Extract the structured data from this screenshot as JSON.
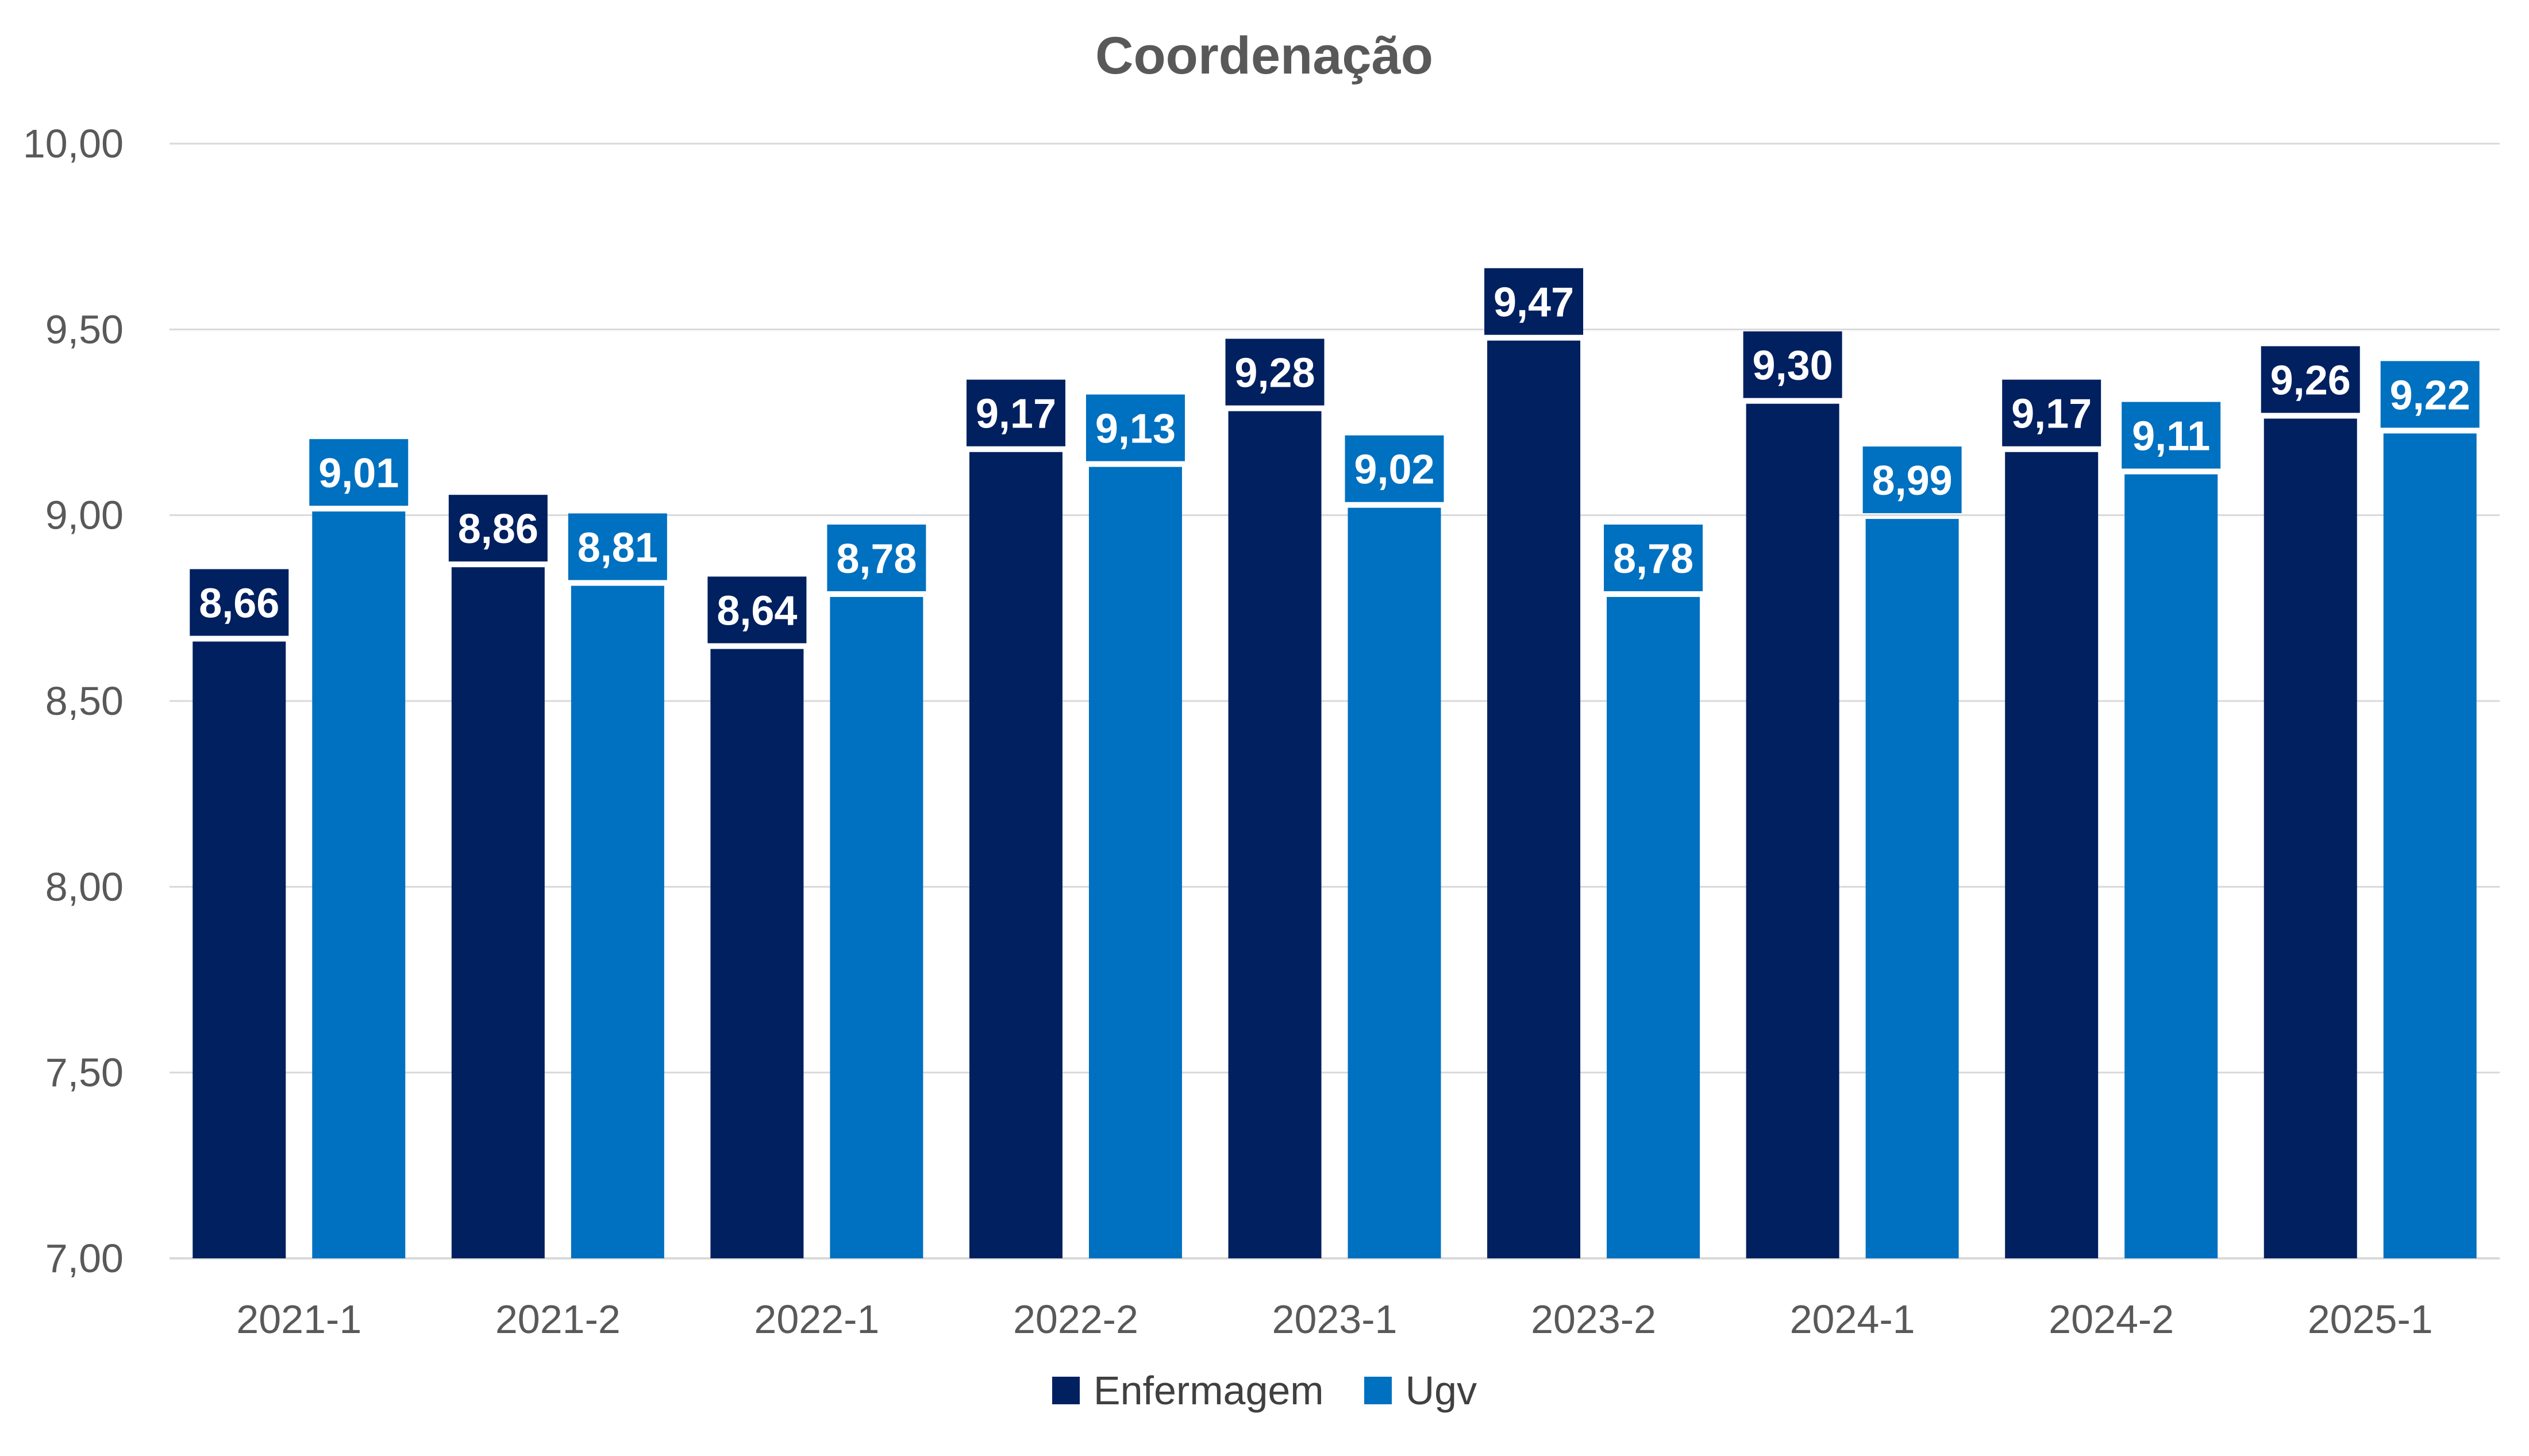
{
  "chart_data": {
    "type": "bar",
    "title": "Coordenação",
    "xlabel": "",
    "ylabel": "",
    "ylim": [
      7.0,
      10.0
    ],
    "yticks": [
      "7,00",
      "7,50",
      "8,00",
      "8,50",
      "9,00",
      "9,50",
      "10,00"
    ],
    "yticks_values": [
      7.0,
      7.5,
      8.0,
      8.5,
      9.0,
      9.5,
      10.0
    ],
    "grid": true,
    "legend_position": "bottom",
    "categories": [
      "2021-1",
      "2021-2",
      "2022-1",
      "2022-2",
      "2023-1",
      "2023-2",
      "2024-1",
      "2024-2",
      "2025-1"
    ],
    "series": [
      {
        "name": "Enfermagem",
        "color": "#002060",
        "values": [
          8.66,
          8.86,
          8.64,
          9.17,
          9.28,
          9.47,
          9.3,
          9.17,
          9.26
        ],
        "labels": [
          "8,66",
          "8,86",
          "8,64",
          "9,17",
          "9,28",
          "9,47",
          "9,30",
          "9,17",
          "9,26"
        ]
      },
      {
        "name": "Ugv",
        "color": "#0070C0",
        "values": [
          9.01,
          8.81,
          8.78,
          9.13,
          9.02,
          8.78,
          8.99,
          9.11,
          9.22
        ],
        "labels": [
          "9,01",
          "8,81",
          "8,78",
          "9,13",
          "9,02",
          "8,78",
          "8,99",
          "9,11",
          "9,22"
        ]
      }
    ]
  }
}
